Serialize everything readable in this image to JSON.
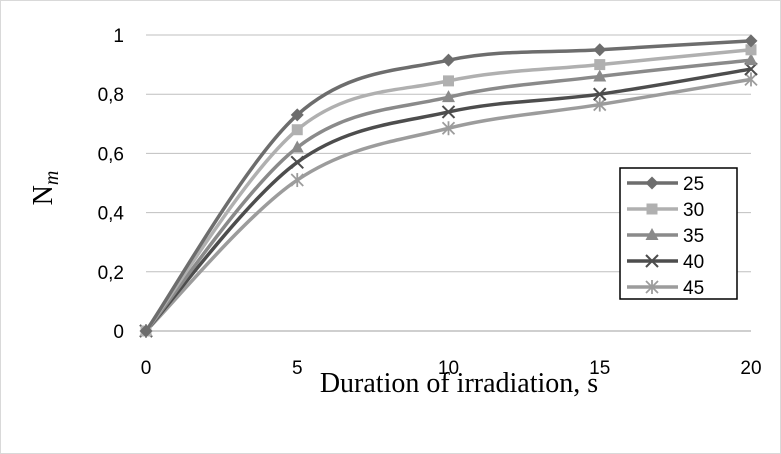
{
  "chart_data": {
    "type": "line",
    "xlabel": "Duration of irradiation, s",
    "ylabel": {
      "main": "N",
      "sub": "m"
    },
    "x": [
      0,
      5,
      10,
      15,
      20
    ],
    "x_ticks": [
      "0",
      "5",
      "10",
      "15",
      "20"
    ],
    "y_ticks": [
      "0",
      "0,2",
      "0,4",
      "0,6",
      "0,8",
      "1"
    ],
    "xlim": [
      0,
      20
    ],
    "ylim": [
      0,
      1
    ],
    "grid": "horizontal",
    "smooth": true,
    "legend_position": "right",
    "series": [
      {
        "name": "25",
        "values": [
          0,
          0.73,
          0.915,
          0.95,
          0.98
        ],
        "color": "#6d6d6d",
        "marker": "diamond"
      },
      {
        "name": "30",
        "values": [
          0,
          0.68,
          0.845,
          0.9,
          0.95
        ],
        "color": "#b0b0b0",
        "marker": "square"
      },
      {
        "name": "35",
        "values": [
          0,
          0.62,
          0.79,
          0.86,
          0.915
        ],
        "color": "#8a8a8a",
        "marker": "triangle"
      },
      {
        "name": "40",
        "values": [
          0,
          0.57,
          0.74,
          0.8,
          0.885
        ],
        "color": "#4d4d4d",
        "marker": "x"
      },
      {
        "name": "45",
        "values": [
          0,
          0.51,
          0.685,
          0.765,
          0.85
        ],
        "color": "#9c9c9c",
        "marker": "asterisk"
      }
    ]
  }
}
